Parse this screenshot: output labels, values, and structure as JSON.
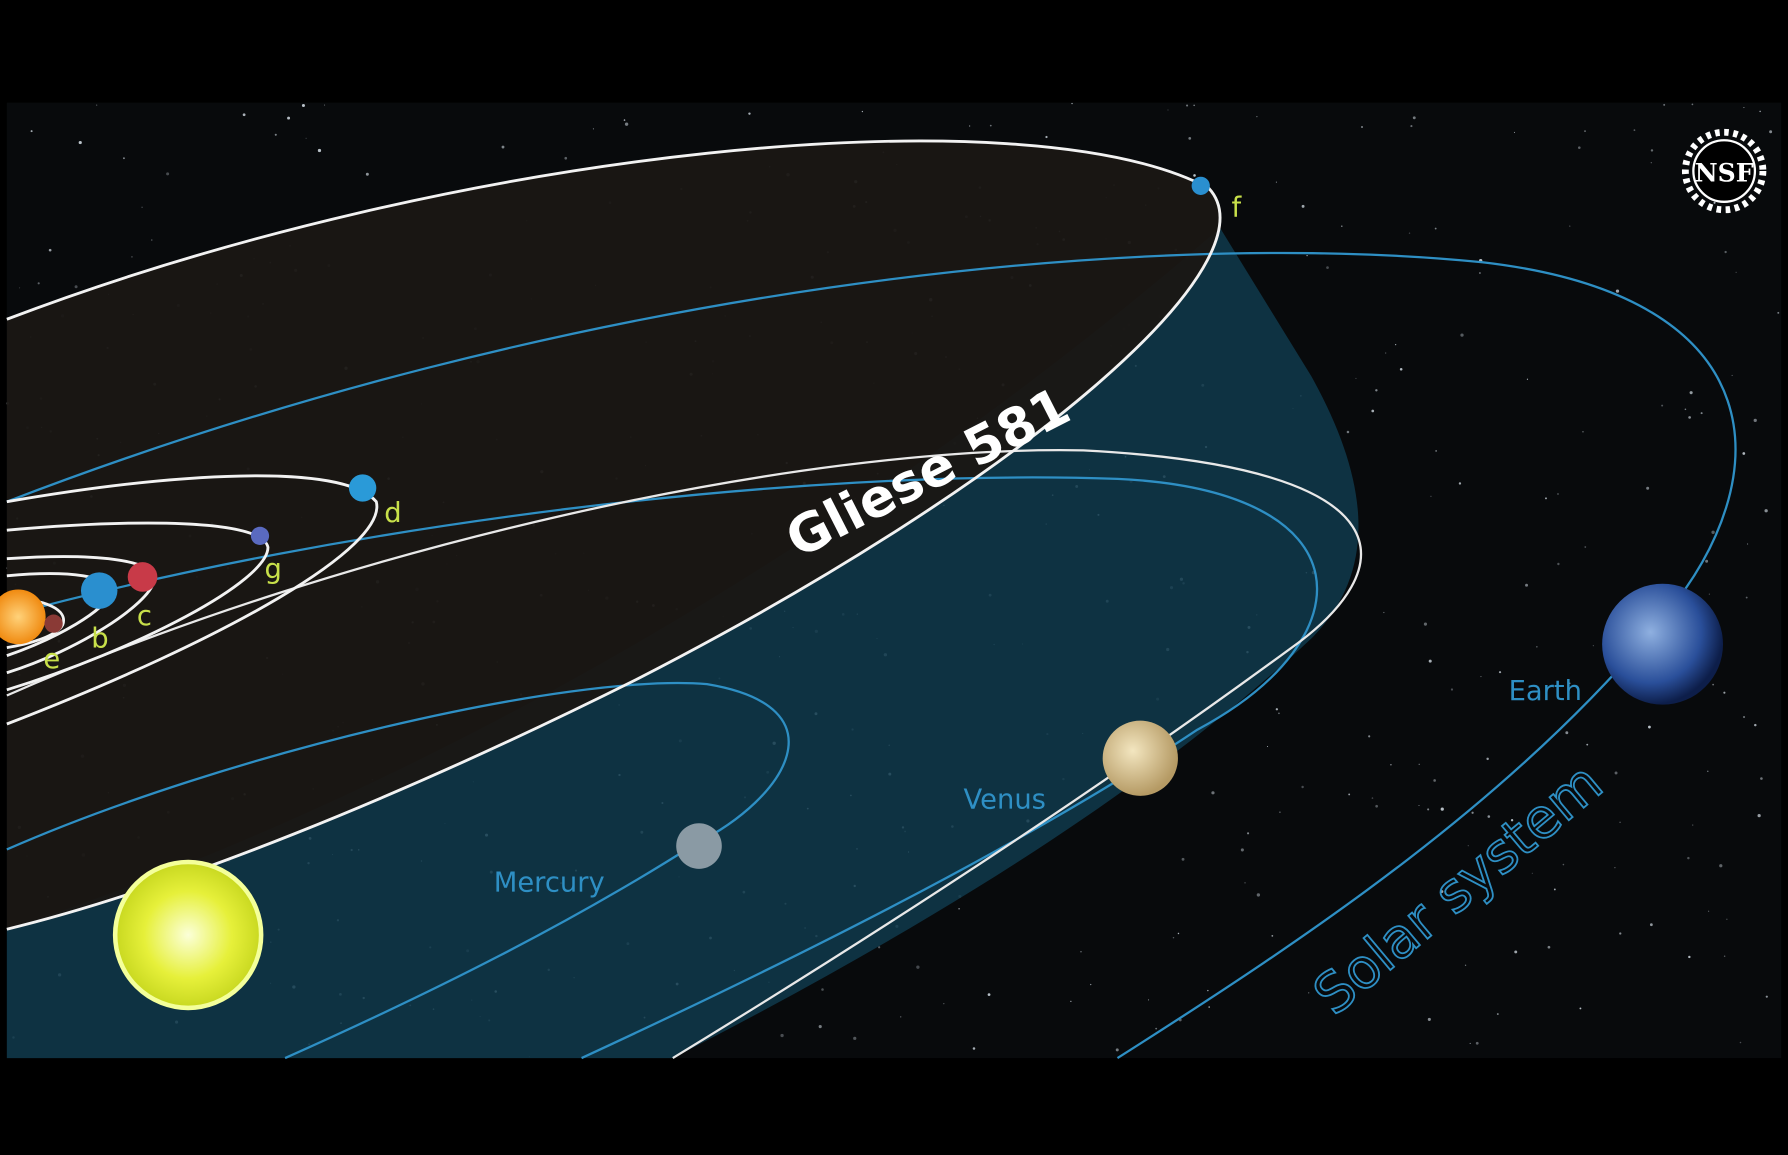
{
  "logo": "NSF",
  "gliese_581": {
    "title": "Gliese 581",
    "planets": [
      "e",
      "b",
      "c",
      "g",
      "d",
      "f"
    ]
  },
  "solar_system": {
    "title": "Solar system",
    "planets": [
      "Mercury",
      "Venus",
      "Earth"
    ]
  }
}
